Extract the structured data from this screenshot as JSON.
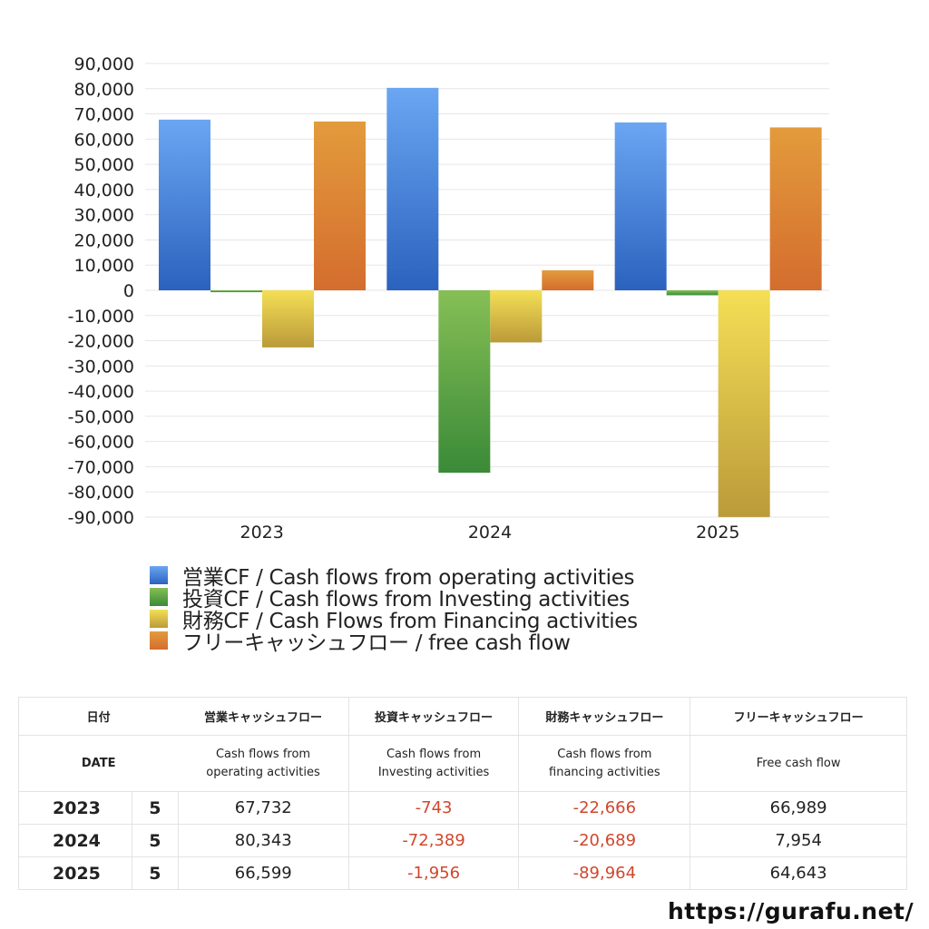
{
  "chart_data": {
    "type": "bar",
    "title": "",
    "xlabel": "",
    "ylabel": "",
    "categories": [
      "2023",
      "2024",
      "2025"
    ],
    "series": [
      {
        "name": "営業CF / Cash flows from operating activities",
        "values": [
          67732,
          80343,
          66599
        ],
        "color_top": "#6aa6f2",
        "color_bottom": "#2b62be"
      },
      {
        "name": "投資CF / Cash flows from Investing activities",
        "values": [
          -743,
          -72389,
          -1956
        ],
        "color_top": "#86bf55",
        "color_bottom": "#3a8a38"
      },
      {
        "name": "財務CF / Cash Flows from Financing activities",
        "values": [
          -22666,
          -20689,
          -89964
        ],
        "color_top": "#f4df55",
        "color_bottom": "#bb9a3a"
      },
      {
        "name": "フリーキャッシュフロー / free cash flow",
        "values": [
          66989,
          7954,
          64643
        ],
        "color_top": "#e39b3c",
        "color_bottom": "#d46d2e"
      }
    ],
    "ylim": [
      -90000,
      90000
    ],
    "yticks": [
      90000,
      80000,
      70000,
      60000,
      50000,
      40000,
      30000,
      20000,
      10000,
      0,
      -10000,
      -20000,
      -30000,
      -40000,
      -50000,
      -60000,
      -70000,
      -80000,
      -90000
    ],
    "ytick_labels": [
      "90,000",
      "80,000",
      "70,000",
      "60,000",
      "50,000",
      "40,000",
      "30,000",
      "20,000",
      "10,000",
      "0",
      "-10,000",
      "-20,000",
      "-30,000",
      "-40,000",
      "-50,000",
      "-60,000",
      "-70,000",
      "-80,000",
      "-90,000"
    ],
    "grid": true,
    "legend_position": "bottom"
  },
  "legend": [
    {
      "label": "営業CF / Cash flows from operating activities",
      "color": "#4a86dc"
    },
    {
      "label": "投資CF / Cash flows from Investing activities",
      "color": "#5aa547"
    },
    {
      "label": "財務CF / Cash Flows from Financing activities",
      "color": "#dcc54a"
    },
    {
      "label": "フリーキャッシュフロー / free cash flow",
      "color": "#dc8435"
    }
  ],
  "table": {
    "header_jp": [
      "日付",
      "営業キャッシュフロー",
      "投資キャッシュフロー",
      "財務キャッシュフロー",
      "フリーキャッシュフロー"
    ],
    "header_en": {
      "date": "DATE",
      "op_1": "Cash flows from",
      "op_2": "operating activities",
      "inv_1": "Cash flows from",
      "inv_2": "Investing activities",
      "fin_1": "Cash flows from",
      "fin_2": "financing activities",
      "free": "Free cash flow"
    },
    "rows": [
      {
        "year": "2023",
        "month": "5",
        "op": "67,732",
        "inv": "-743",
        "fin": "-22,666",
        "free": "66,989"
      },
      {
        "year": "2024",
        "month": "5",
        "op": "80,343",
        "inv": "-72,389",
        "fin": "-20,689",
        "free": "7,954"
      },
      {
        "year": "2025",
        "month": "5",
        "op": "66,599",
        "inv": "-1,956",
        "fin": "-89,964",
        "free": "64,643"
      }
    ]
  },
  "footer": {
    "url": "https://gurafu.net/"
  }
}
